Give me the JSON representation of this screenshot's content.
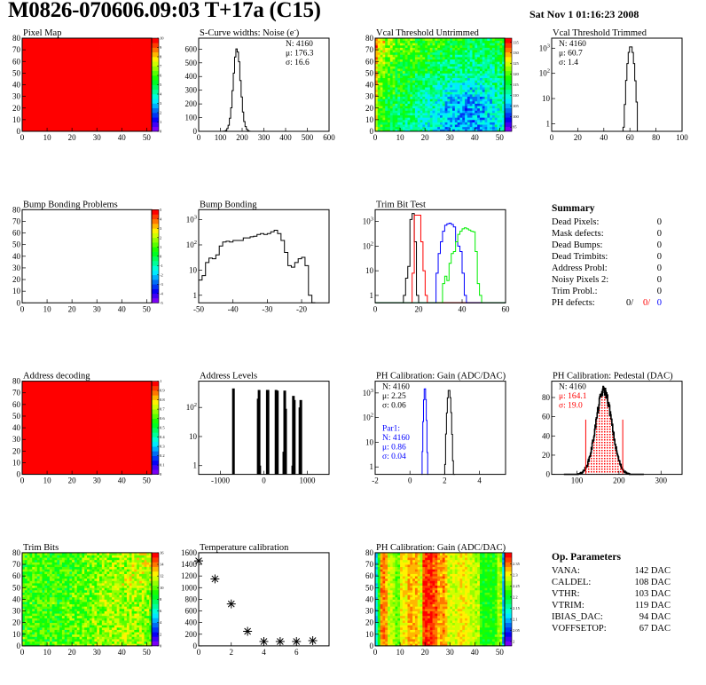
{
  "header": {
    "title": "M0826-070606.09:03 T+17a (C15)",
    "date": "Sat Nov  1 01:16:23 2008"
  },
  "summary": {
    "title": "Summary",
    "items": [
      {
        "label": "Dead Pixels:",
        "value": "0"
      },
      {
        "label": "Mask defects:",
        "value": "0"
      },
      {
        "label": "Dead Bumps:",
        "value": "0"
      },
      {
        "label": "Dead Trimbits:",
        "value": "0"
      },
      {
        "label": "Address Probl:",
        "value": "0"
      },
      {
        "label": "Noisy Pixels 2:",
        "value": "0"
      },
      {
        "label": "Trim Probl.:",
        "value": "0"
      }
    ],
    "ph_defects": {
      "label": "PH defects:",
      "v1": "0/",
      "v2": "0/",
      "v3": "0"
    }
  },
  "op_parameters": {
    "title": "Op. Parameters",
    "items": [
      {
        "label": "VANA:",
        "value": "142 DAC"
      },
      {
        "label": "CALDEL:",
        "value": "108 DAC"
      },
      {
        "label": "VTHR:",
        "value": "103 DAC"
      },
      {
        "label": "VTRIM:",
        "value": "119 DAC"
      },
      {
        "label": "IBIAS_DAC:",
        "value": "94 DAC"
      },
      {
        "label": "VOFFSETOP:",
        "value": "67 DAC"
      }
    ]
  },
  "colors": {
    "black": "#000000",
    "red": "#ff0000",
    "blue": "#0000ff",
    "green": "#00ee00"
  },
  "chart_data": [
    {
      "type": "heatmap",
      "title": "Pixel Map",
      "xlim": [
        0,
        52
      ],
      "ylim": [
        0,
        80
      ],
      "zlim": [
        0,
        10
      ],
      "xticks": [
        "0",
        "10",
        "20",
        "30",
        "40",
        "50"
      ],
      "yticks": [
        "0",
        "10",
        "20",
        "30",
        "40",
        "50",
        "60",
        "70",
        "80"
      ],
      "zticks": [
        "0",
        "1",
        "2",
        "3",
        "4",
        "5",
        "6",
        "7",
        "8",
        "9",
        "10"
      ],
      "uniform": 10
    },
    {
      "type": "histogram",
      "title": "S-Curve widths: Noise (e^-)",
      "scale": "linear",
      "xlim": [
        0,
        600
      ],
      "ylim": [
        0,
        680
      ],
      "xticks": [
        "0",
        "100",
        "200",
        "300",
        "400",
        "500",
        "600"
      ],
      "yticks": [
        "0",
        "100",
        "200",
        "300",
        "400",
        "500",
        "600"
      ],
      "series": [
        {
          "color": "#000000",
          "gaussian": {
            "N": 4160,
            "mean": 176.3,
            "sigma": 16.6,
            "bin_width": 6
          }
        }
      ],
      "stats": [
        {
          "text": "N: 4160",
          "color": "#000000"
        },
        {
          "text": "μ: 176.3",
          "color": "#000000"
        },
        {
          "text": "σ: 16.6",
          "color": "#000000"
        }
      ]
    },
    {
      "type": "heatmap",
      "title": "Vcal Threshold Untrimmed",
      "xlim": [
        0,
        52
      ],
      "ylim": [
        0,
        80
      ],
      "zlim": [
        93,
        137
      ],
      "xticks": [
        "0",
        "10",
        "20",
        "30",
        "40",
        "50"
      ],
      "yticks": [
        "0",
        "10",
        "20",
        "30",
        "40",
        "50",
        "60",
        "70",
        "80"
      ],
      "zticks": [
        "95",
        "100",
        "105",
        "110",
        "115",
        "120",
        "125",
        "130",
        "135"
      ],
      "grid_rows_top_to_bottom": [
        [
          126,
          122,
          120,
          120,
          119,
          118,
          118,
          117,
          117,
          116,
          115,
          115,
          116
        ],
        [
          124,
          121,
          119,
          118,
          118,
          117,
          116,
          115,
          114,
          114,
          114,
          113,
          115
        ],
        [
          122,
          119,
          118,
          117,
          116,
          115,
          114,
          113,
          112,
          112,
          112,
          112,
          114
        ],
        [
          121,
          118,
          117,
          116,
          115,
          113,
          112,
          111,
          110,
          110,
          110,
          111,
          113
        ],
        [
          120,
          117,
          116,
          115,
          113,
          112,
          110,
          109,
          108,
          107,
          108,
          109,
          112
        ],
        [
          119,
          116,
          115,
          114,
          112,
          111,
          109,
          107,
          106,
          105,
          106,
          108,
          111
        ],
        [
          118,
          115,
          114,
          113,
          111,
          110,
          108,
          106,
          105,
          104,
          105,
          107,
          110
        ],
        [
          118,
          115,
          113,
          112,
          111,
          109,
          108,
          106,
          105,
          104,
          105,
          107,
          110
        ]
      ]
    },
    {
      "type": "histogram",
      "title": "Vcal Threshold Trimmed",
      "scale": "log",
      "xlim": [
        0,
        100
      ],
      "ylim": [
        0.5,
        2500
      ],
      "xticks": [
        "0",
        "20",
        "40",
        "60",
        "80",
        "100"
      ],
      "yticks": [
        "1",
        "10",
        "10^2",
        "10^3"
      ],
      "series": [
        {
          "color": "#000000",
          "gaussian": {
            "N": 4160,
            "mean": 60.7,
            "sigma": 1.4,
            "bin_width": 1
          }
        }
      ],
      "stats": [
        {
          "text": "N: 4160",
          "color": "#000000"
        },
        {
          "text": "μ: 60.7",
          "color": "#000000"
        },
        {
          "text": "σ:  1.4",
          "color": "#000000"
        }
      ]
    },
    {
      "type": "heatmap",
      "title": "Bump Bonding Problems",
      "xlim": [
        0,
        52
      ],
      "ylim": [
        0,
        80
      ],
      "zlim": [
        -5,
        5
      ],
      "xticks": [
        "0",
        "10",
        "20",
        "30",
        "40",
        "50"
      ],
      "yticks": [
        "0",
        "10",
        "20",
        "30",
        "40",
        "50",
        "60",
        "70",
        "80"
      ],
      "zticks": [
        "-5",
        "-4",
        "-3",
        "-2",
        "-1",
        "0",
        "1",
        "2",
        "3",
        "4",
        "5"
      ],
      "empty": true
    },
    {
      "type": "histogram",
      "title": "Bump Bonding",
      "scale": "log",
      "xlim": [
        -50,
        -12
      ],
      "ylim": [
        0.5,
        2500
      ],
      "xticks": [
        "-50",
        "-40",
        "-30",
        "-20"
      ],
      "yticks": [
        "1",
        "10",
        "10^2",
        "10^3"
      ],
      "series": [
        {
          "color": "#000000",
          "bins": {
            "start": -50,
            "width": 1,
            "counts": [
              4,
              6,
              20,
              30,
              28,
              40,
              90,
              130,
              140,
              130,
              150,
              150,
              150,
              190,
              190,
              210,
              220,
              260,
              280,
              260,
              280,
              330,
              380,
              280,
              150,
              50,
              15,
              13,
              20,
              28,
              32,
              15,
              1,
              0
            ]
          }
        }
      ]
    },
    {
      "type": "histogram",
      "title": "Trim Bit Test",
      "scale": "log",
      "xlim": [
        0,
        60
      ],
      "ylim": [
        0.5,
        3000
      ],
      "xticks": [
        "0",
        "20",
        "40",
        "60"
      ],
      "yticks": [
        "1",
        "10",
        "10^2",
        "10^3"
      ],
      "series": [
        {
          "color": "#000000",
          "bins": {
            "start": 13,
            "width": 1,
            "counts": [
              1,
              5,
              15,
              1200,
              2100,
              150,
              1
            ]
          }
        },
        {
          "color": "#ff0000",
          "bins": {
            "start": 17,
            "width": 1,
            "counts": [
              8,
              1800,
              1800,
              1800,
              150,
              10,
              1,
              0
            ]
          }
        },
        {
          "color": "#0000ff",
          "bins": {
            "start": 28,
            "width": 1,
            "counts": [
              8,
              50,
              150,
              400,
              700,
              800,
              850,
              750,
              600,
              150,
              100,
              60,
              8,
              1,
              0
            ]
          }
        },
        {
          "color": "#00ee00",
          "bins": {
            "start": 31,
            "width": 1,
            "counts": [
              3,
              6,
              4,
              20,
              50,
              60,
              150,
              300,
              400,
              500,
              550,
              500,
              450,
              400,
              380,
              60,
              3,
              1
            ]
          }
        }
      ]
    },
    {
      "type": "heatmap",
      "title": "Address decoding",
      "xlim": [
        0,
        52
      ],
      "ylim": [
        0,
        80
      ],
      "zlim": [
        0,
        1
      ],
      "xticks": [
        "0",
        "10",
        "20",
        "30",
        "40",
        "50"
      ],
      "yticks": [
        "0",
        "10",
        "20",
        "30",
        "40",
        "50",
        "60",
        "70",
        "80"
      ],
      "zticks": [
        "0",
        "0.1",
        "0.2",
        "0.3",
        "0.4",
        "0.5",
        "0.6",
        "0.7",
        "0.8",
        "0.9",
        "1"
      ],
      "uniform": 1
    },
    {
      "type": "spikes",
      "title": "Address Levels",
      "scale": "log",
      "xlim": [
        -1500,
        1500
      ],
      "ylim": [
        0.5,
        800
      ],
      "xticks": [
        "-1000",
        "0",
        "1000"
      ],
      "yticks": [
        "1",
        "10",
        "10^2"
      ],
      "points": [
        [
          -700,
          450
        ],
        [
          -130,
          200
        ],
        [
          -110,
          400
        ],
        [
          -95,
          1
        ],
        [
          80,
          400
        ],
        [
          95,
          400
        ],
        [
          280,
          400
        ],
        [
          310,
          380
        ],
        [
          460,
          3
        ],
        [
          480,
          380
        ],
        [
          500,
          90
        ],
        [
          665,
          1
        ],
        [
          680,
          250
        ],
        [
          700,
          180
        ],
        [
          830,
          100
        ],
        [
          850,
          180
        ]
      ]
    },
    {
      "type": "histogram",
      "title": "PH Calibration: Gain (ADC/DAC)",
      "scale": "log",
      "xlim": [
        -2,
        5.5
      ],
      "ylim": [
        0.5,
        3000
      ],
      "xticks": [
        "-2",
        "0",
        "2",
        "4"
      ],
      "yticks": [
        "1",
        "10",
        "10^2",
        "10^3"
      ],
      "series": [
        {
          "color": "#000000",
          "gaussian": {
            "N": 4160,
            "mean": 2.25,
            "sigma": 0.06,
            "bin_width": 0.05
          }
        },
        {
          "color": "#0000ff",
          "gaussian": {
            "N": 4160,
            "mean": 0.86,
            "sigma": 0.04,
            "bin_width": 0.04
          }
        }
      ],
      "stats": [
        {
          "text": "N: 4160",
          "color": "#000000"
        },
        {
          "text": "μ: 2.25",
          "color": "#000000"
        },
        {
          "text": "σ: 0.06",
          "color": "#000000"
        }
      ],
      "stats2": [
        {
          "text": "Par1:",
          "color": "#0000ff"
        },
        {
          "text": "N: 4160",
          "color": "#0000ff"
        },
        {
          "text": "μ: 0.86",
          "color": "#0000ff"
        },
        {
          "text": "σ: 0.04",
          "color": "#0000ff"
        }
      ]
    },
    {
      "type": "histogram",
      "title": "PH Calibration: Pedestal (DAC)",
      "scale": "linear",
      "xlim": [
        40,
        350
      ],
      "ylim": [
        0,
        97
      ],
      "xticks": [
        "100",
        "200",
        "300"
      ],
      "yticks": [
        "0",
        "20",
        "40",
        "60",
        "80"
      ],
      "series": [
        {
          "color": "#000000",
          "gaussian": {
            "N": 4160,
            "mean": 164.1,
            "sigma": 19.0,
            "bin_width": 1
          }
        }
      ],
      "fill_range": [
        121,
        209
      ],
      "fill_color": "#ff0000",
      "stats": [
        {
          "text": "N: 4160",
          "color": "#000000"
        },
        {
          "text": "μ: 164.1",
          "color": "#ff0000"
        },
        {
          "text": "σ: 19.0",
          "color": "#ff0000"
        }
      ]
    },
    {
      "type": "heatmap",
      "title": "Trim Bits",
      "xlim": [
        0,
        52
      ],
      "ylim": [
        0,
        80
      ],
      "zlim": [
        0,
        16
      ],
      "xticks": [
        "0",
        "10",
        "20",
        "30",
        "40",
        "50"
      ],
      "yticks": [
        "0",
        "10",
        "20",
        "30",
        "40",
        "50",
        "60",
        "70",
        "80"
      ],
      "zticks": [
        "0",
        "2",
        "4",
        "6",
        "8",
        "10",
        "12",
        "14",
        "16"
      ],
      "grid_rows_top_to_bottom": [
        [
          9.5,
          9.5,
          9.5,
          9.5,
          9.5,
          9.5,
          10,
          10,
          10.5,
          11,
          11,
          11.5,
          11.5
        ],
        [
          9.5,
          9.5,
          9.5,
          9.5,
          9.5,
          9.5,
          10,
          10,
          10.5,
          11,
          11,
          11.5,
          11.5
        ],
        [
          9.5,
          9.5,
          9.5,
          9.5,
          9.5,
          10,
          10,
          10.5,
          11,
          11,
          11.5,
          11.5,
          11
        ],
        [
          9.5,
          9.5,
          9.5,
          9.5,
          9.5,
          10,
          10,
          10.5,
          11,
          11,
          11,
          11,
          11
        ],
        [
          9.5,
          9.5,
          9.5,
          9.5,
          10,
          10,
          10,
          10.5,
          11,
          11,
          11,
          11,
          10.5
        ],
        [
          9.5,
          9.5,
          9.5,
          9.5,
          10,
          10,
          10,
          10.5,
          11,
          11,
          11,
          11,
          10.5
        ],
        [
          9.5,
          9.5,
          9.5,
          9.5,
          9.5,
          10,
          10,
          10.5,
          10.5,
          11,
          11,
          11,
          10.5
        ],
        [
          9.5,
          9.5,
          9.5,
          9.5,
          9.5,
          10,
          10,
          10.5,
          10.5,
          11,
          11,
          11,
          10.5
        ]
      ]
    },
    {
      "type": "scatter",
      "title": "Temperature calibration",
      "xlim": [
        0,
        8
      ],
      "ylim": [
        0,
        1600
      ],
      "xticks": [
        "0",
        "2",
        "4",
        "6"
      ],
      "yticks": [
        "0",
        "200",
        "400",
        "600",
        "800",
        "1000",
        "1200",
        "1400",
        "1600"
      ],
      "x": [
        0,
        1,
        2,
        3,
        4,
        5,
        6,
        7
      ],
      "y": [
        1460,
        1150,
        720,
        250,
        75,
        75,
        75,
        90
      ],
      "marker": "asterisk"
    },
    {
      "type": "heatmap",
      "title": "PH Calibration: Gain (ADC/DAC)",
      "xlim": [
        0,
        52
      ],
      "ylim": [
        0,
        80
      ],
      "zlim": [
        1.98,
        2.4
      ],
      "xticks": [
        "0",
        "10",
        "20",
        "30",
        "40",
        "50"
      ],
      "yticks": [
        "0",
        "10",
        "20",
        "30",
        "40",
        "50",
        "60",
        "70",
        "80"
      ],
      "zticks": [
        "2",
        "2.05",
        "2.1",
        "2.15",
        "2.2",
        "2.25",
        "2.3",
        "2.35"
      ],
      "column_profile": [
        2.12,
        2.22,
        2.34,
        2.35,
        2.33,
        2.28,
        2.28,
        2.27,
        2.25,
        2.25,
        2.3,
        2.31,
        2.3,
        2.33,
        2.33,
        2.32,
        2.33,
        2.31,
        2.28,
        2.37,
        2.38,
        2.37,
        2.38,
        2.36,
        2.36,
        2.33,
        2.33,
        2.34,
        2.32,
        2.29,
        2.29,
        2.29,
        2.28,
        2.3,
        2.31,
        2.3,
        2.3,
        2.29,
        2.28,
        2.28,
        2.27,
        2.28,
        2.22,
        2.21,
        2.22,
        2.21,
        2.22,
        2.21,
        2.23,
        2.27,
        2.26,
        2.1
      ]
    }
  ]
}
